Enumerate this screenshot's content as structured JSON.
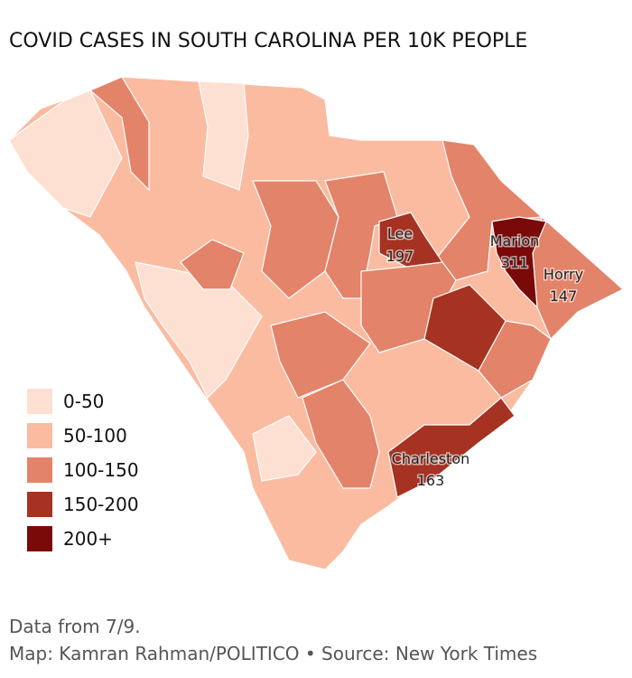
{
  "title": "COVID CASES IN SOUTH CAROLINA PER 10K PEOPLE",
  "legend": [
    {
      "label": "0-50",
      "color": "#fde0d2"
    },
    {
      "label": "50-100",
      "color": "#fbbba1"
    },
    {
      "label": "100-150",
      "color": "#e3836a"
    },
    {
      "label": "150-200",
      "color": "#a63222"
    },
    {
      "label": "200+",
      "color": "#7a0909"
    }
  ],
  "annotations": [
    {
      "name": "Lee",
      "value": 197
    },
    {
      "name": "Marion",
      "value": 311
    },
    {
      "name": "Horry",
      "value": 147
    },
    {
      "name": "Charleston",
      "value": 163
    }
  ],
  "footer": [
    "Data from 7/9.",
    "Map: Kamran Rahman/POLITICO • Source: New York Times"
  ]
}
